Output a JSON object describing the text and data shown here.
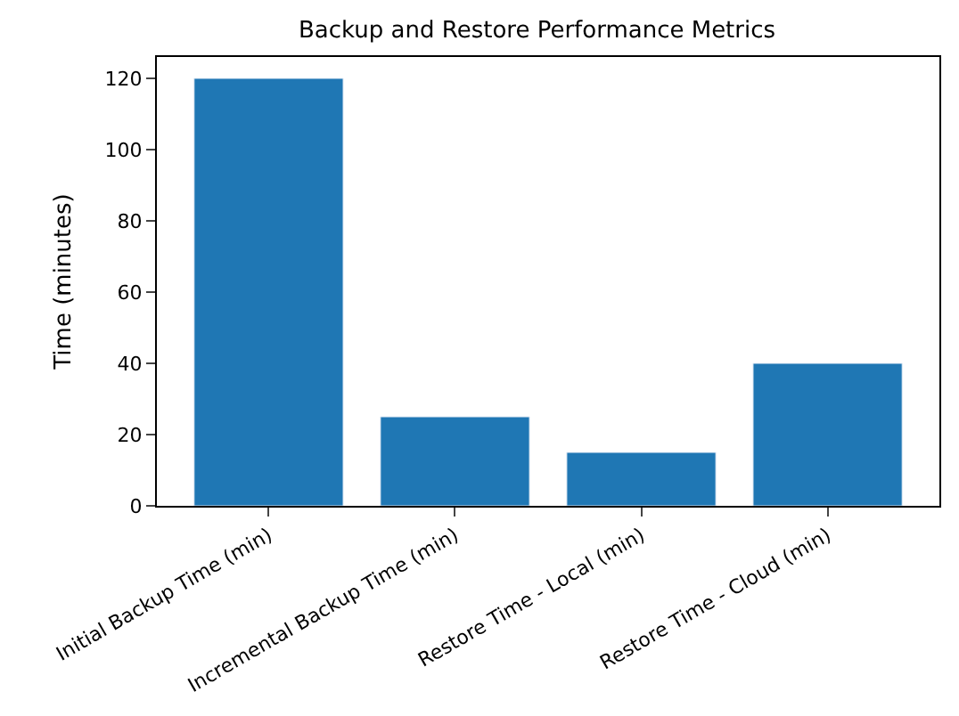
{
  "chart_data": {
    "type": "bar",
    "title": "Backup and Restore Performance Metrics",
    "ylabel": "Time (minutes)",
    "categories": [
      "Initial Backup Time (min)",
      "Incremental Backup Time (min)",
      "Restore Time - Local (min)",
      "Restore Time - Cloud (min)"
    ],
    "values": [
      120,
      25,
      15,
      40
    ],
    "color": "#1f77b4",
    "ylim": [
      0,
      126
    ],
    "yticks": [
      0,
      20,
      40,
      60,
      80,
      100,
      120
    ]
  }
}
